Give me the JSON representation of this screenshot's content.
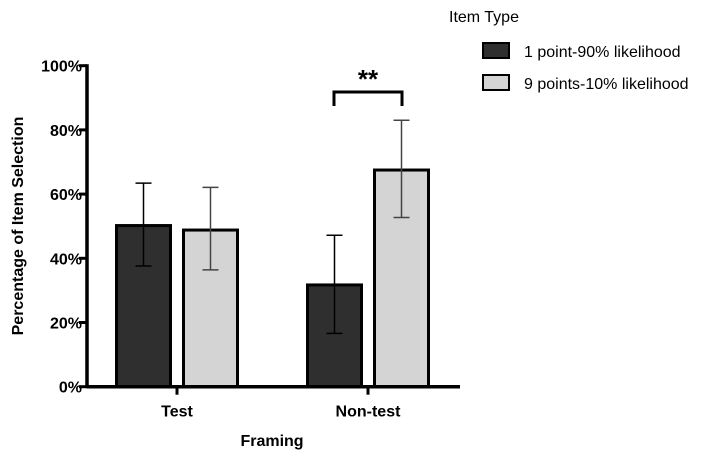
{
  "chart_data": {
    "type": "bar",
    "xlabel": "Framing",
    "ylabel": "Percentage of Item Selection",
    "ylim": [
      0,
      100
    ],
    "yticks": [
      "0%",
      "20%",
      "40%",
      "60%",
      "80%",
      "100%"
    ],
    "categories": [
      "Test",
      "Non-test"
    ],
    "legend_title": "Item Type",
    "legend_position": "top-right",
    "series": [
      {
        "name": "1 point-90% likelihood",
        "color": "#2f2f2f",
        "values": [
          50.2,
          31.7
        ],
        "err_low": [
          37.6,
          16.6
        ],
        "err_high": [
          63.4,
          47.2
        ]
      },
      {
        "name": "9 points-10% likelihood",
        "color": "#d4d4d4",
        "values": [
          48.8,
          67.5
        ],
        "err_low": [
          36.4,
          52.7
        ],
        "err_high": [
          62.1,
          83.0
        ]
      }
    ],
    "annotation": {
      "text": "**",
      "category": "Non-test"
    }
  }
}
